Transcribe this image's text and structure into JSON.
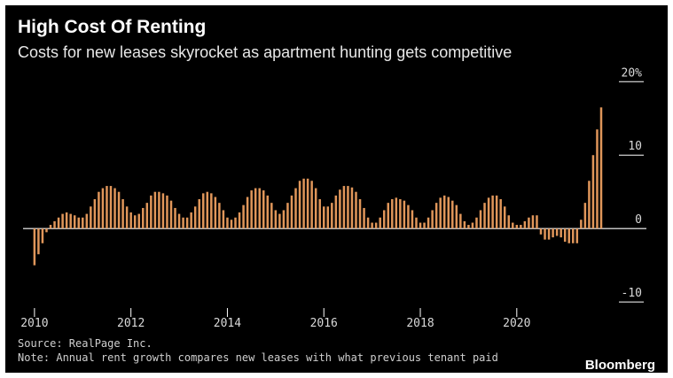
{
  "chart_data": {
    "type": "bar",
    "title": "High Cost Of Renting",
    "subtitle": "Costs for new leases skyrocket as apartment hunting gets competitive",
    "xlabel": "",
    "ylabel": "",
    "ylim": [
      -13,
      21
    ],
    "y_ticks": [
      {
        "value": 20,
        "label": "20%"
      },
      {
        "value": 10,
        "label": "10"
      },
      {
        "value": 0,
        "label": "0"
      },
      {
        "value": -10,
        "label": "-10"
      }
    ],
    "x_ticks": [
      {
        "value": 2010,
        "label": "2010"
      },
      {
        "value": 2012,
        "label": "2012"
      },
      {
        "value": 2014,
        "label": "2014"
      },
      {
        "value": 2016,
        "label": "2016"
      },
      {
        "value": 2018,
        "label": "2018"
      },
      {
        "value": 2020,
        "label": "2020"
      }
    ],
    "xlim": [
      2009.8,
      2021.75
    ],
    "start": "2010-01",
    "series": [
      {
        "color": "#e0965a",
        "values": [
          -5.0,
          -3.5,
          -2.0,
          -0.5,
          0.5,
          1.0,
          1.5,
          2.0,
          2.2,
          2.0,
          1.8,
          1.5,
          1.5,
          2.0,
          3.0,
          4.0,
          5.0,
          5.5,
          5.8,
          5.8,
          5.5,
          5.0,
          4.0,
          3.0,
          2.2,
          1.8,
          2.0,
          2.8,
          3.5,
          4.5,
          5.0,
          5.0,
          4.8,
          4.5,
          3.8,
          2.8,
          2.0,
          1.5,
          1.5,
          2.2,
          3.0,
          4.0,
          4.8,
          5.0,
          4.8,
          4.3,
          3.5,
          2.5,
          1.5,
          1.2,
          1.5,
          2.2,
          3.2,
          4.3,
          5.2,
          5.5,
          5.5,
          5.2,
          4.5,
          3.5,
          2.5,
          2.0,
          2.5,
          3.5,
          4.5,
          5.5,
          6.5,
          6.8,
          6.8,
          6.5,
          5.5,
          4.0,
          3.0,
          3.0,
          3.5,
          4.5,
          5.3,
          5.8,
          5.8,
          5.6,
          5.0,
          4.0,
          2.8,
          1.5,
          0.8,
          0.8,
          1.5,
          2.5,
          3.5,
          4.0,
          4.2,
          4.0,
          3.8,
          3.2,
          2.5,
          1.5,
          0.8,
          0.8,
          1.5,
          2.5,
          3.5,
          4.2,
          4.5,
          4.3,
          3.8,
          3.2,
          2.0,
          1.0,
          0.5,
          0.8,
          1.5,
          2.5,
          3.5,
          4.2,
          4.5,
          4.5,
          4.0,
          3.0,
          1.8,
          0.8,
          0.5,
          0.5,
          1.0,
          1.5,
          1.8,
          1.8,
          -0.8,
          -1.5,
          -1.5,
          -1.2,
          -1.0,
          -1.2,
          -1.8,
          -2.0,
          -2.0,
          -2.0,
          1.2,
          3.5,
          6.5,
          10.0,
          13.5,
          16.5
        ]
      }
    ],
    "grid": false,
    "legend": "none"
  },
  "footer": {
    "source": "Source: RealPage Inc.",
    "note": "Note: Annual rent growth compares new leases with what previous tenant paid",
    "brand": "Bloomberg"
  }
}
